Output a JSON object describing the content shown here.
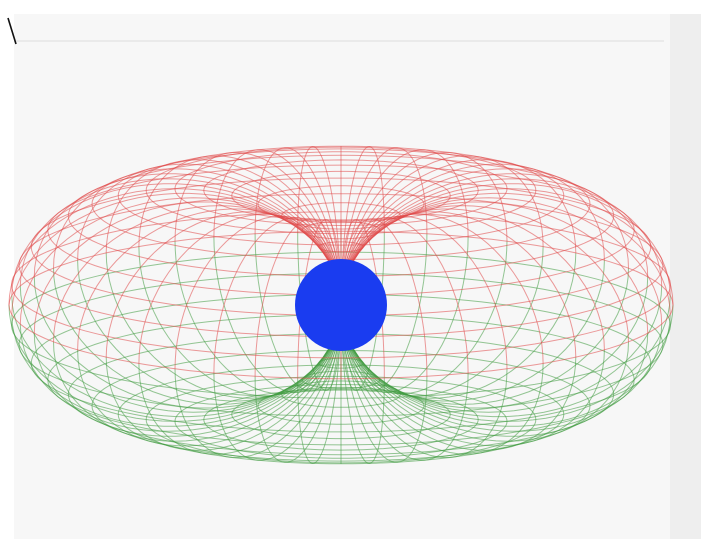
{
  "scene": {
    "background": "#f7f7f7",
    "panel_edge": "#e6e6e6",
    "side_panel": "#eeeeee",
    "upper_mesh_color": "#e04848",
    "lower_mesh_color": "#3f9a3f",
    "sphere_color": "#1a3cf0",
    "mesh_opacity": 0.55,
    "surface": "torus-wireframe",
    "hole_radius": 0
  }
}
